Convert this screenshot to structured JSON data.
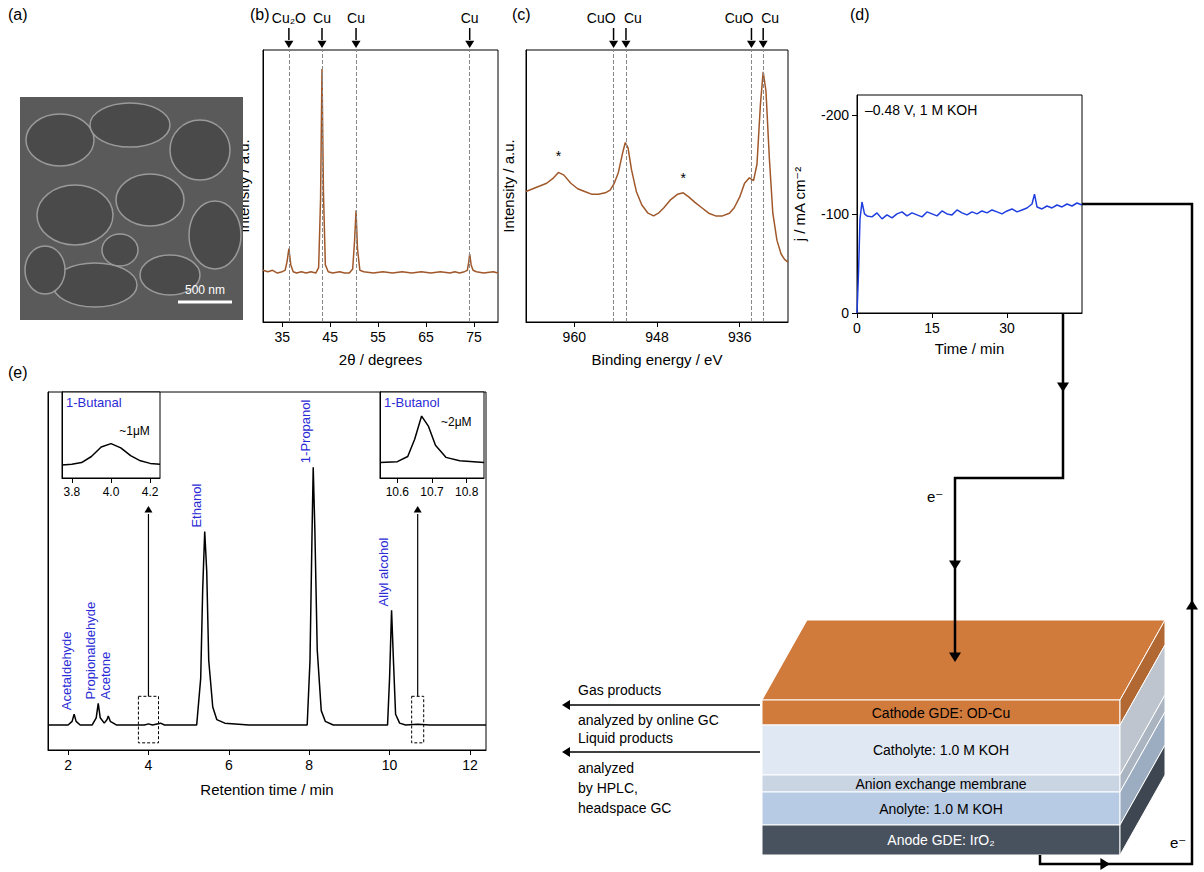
{
  "image": {
    "label": "(a)",
    "scale_bar": "500 nm"
  },
  "chart_data": [
    {
      "label": "(b)",
      "type": "line",
      "x_label": "2θ / degrees",
      "y_label": "Intensity / a.u.",
      "color": "#a0582a",
      "xlim": [
        31,
        80
      ],
      "xticks": [
        35,
        45,
        55,
        65,
        75
      ],
      "ylim": [
        0,
        100
      ],
      "tick_labels": "x",
      "x": [
        31,
        32,
        33,
        34,
        35,
        35.6,
        36,
        36.4,
        36.8,
        37.3,
        38,
        39,
        40,
        41,
        42,
        42.6,
        43,
        43.3,
        43.6,
        44,
        44.6,
        45.5,
        47,
        48,
        49,
        49.7,
        50.1,
        50.4,
        50.7,
        51.2,
        52,
        54,
        56,
        58,
        60,
        62,
        64,
        66,
        68,
        70,
        71,
        72,
        73,
        73.6,
        73.9,
        74.1,
        74.4,
        74.8,
        75.5,
        77,
        79,
        80
      ],
      "values": [
        19,
        18.5,
        19,
        18,
        18.5,
        19,
        22,
        27,
        21,
        18.5,
        18,
        18.5,
        18,
        18.5,
        18,
        20,
        45,
        93,
        48,
        21,
        18.5,
        18,
        18.5,
        18,
        18,
        19.5,
        30,
        41,
        27,
        19,
        18.5,
        18,
        18.5,
        18,
        18.5,
        18,
        18.5,
        18,
        18.5,
        18,
        18.5,
        18,
        18.5,
        19,
        22,
        25,
        21,
        19,
        18.5,
        18,
        18.5,
        18
      ],
      "annotations": [
        {
          "x": 36.4,
          "text": "Cu₂O"
        },
        {
          "x": 43.3,
          "text": "Cu"
        },
        {
          "x": 50.4,
          "text": "Cu"
        },
        {
          "x": 74.1,
          "text": "Cu"
        }
      ]
    },
    {
      "label": "(c)",
      "type": "line",
      "x_label": "Binding energy / eV",
      "y_label": "Intensity / a.u.",
      "color": "#a0582a",
      "xlim": [
        967,
        929
      ],
      "xticks": [
        960,
        948,
        936
      ],
      "ylim": [
        0,
        100
      ],
      "tick_labels": "x",
      "x": [
        967,
        966,
        965,
        964,
        963,
        962.3,
        961.5,
        960.5,
        959.5,
        958.5,
        957.5,
        956.5,
        955.5,
        954.8,
        954.2,
        953.6,
        953,
        952.6,
        952.2,
        951.7,
        951,
        950.2,
        949.3,
        948.5,
        947.8,
        947,
        946,
        945,
        944.2,
        943.4,
        942.5,
        941.5,
        940.5,
        939.5,
        938.5,
        937.5,
        936.8,
        936,
        935.3,
        934.6,
        934,
        933.5,
        933,
        932.6,
        932.2,
        931.7,
        931.2,
        930.6,
        930,
        929.5,
        929
      ],
      "values": [
        48,
        49,
        50,
        51,
        53,
        55,
        54,
        51,
        49,
        48,
        47,
        47,
        47.5,
        48.5,
        51,
        55,
        62,
        66,
        64,
        56,
        48,
        43,
        40,
        39,
        40,
        42,
        45,
        47,
        47.5,
        46,
        44,
        42,
        40,
        39,
        39,
        40,
        42,
        46,
        51,
        53,
        52,
        58,
        80,
        92,
        85,
        60,
        40,
        30,
        25,
        23,
        22
      ],
      "annotations": [
        {
          "x": 954.3,
          "text": "CuO"
        },
        {
          "x": 952.5,
          "text": "Cu"
        },
        {
          "x": 934.3,
          "text": "CuO"
        },
        {
          "x": 932.6,
          "text": "Cu"
        },
        {
          "x": 962.3,
          "y": 61,
          "text": "*"
        },
        {
          "x": 944.2,
          "y": 53,
          "text": "*"
        }
      ]
    },
    {
      "label": "(d)",
      "type": "line",
      "x_label": "Time / min",
      "y_label": "j / mA cm⁻²",
      "color": "#1f3fe0",
      "xlim": [
        0,
        45
      ],
      "xticks": [
        0,
        15,
        30
      ],
      "ylim": [
        0,
        -220
      ],
      "yticks": [
        -200,
        -100,
        0
      ],
      "annotations": [
        {
          "text": "–0.48 V, 1 M KOH"
        }
      ],
      "x": [
        0,
        0.3,
        0.6,
        1,
        1.5,
        2,
        3,
        4,
        5,
        6,
        7,
        8,
        9,
        10,
        11,
        12,
        13,
        14,
        15,
        16,
        17,
        18,
        19,
        20,
        21,
        22,
        23,
        24,
        25,
        26,
        27,
        28,
        29,
        30,
        31,
        32,
        33,
        34,
        35,
        35.5,
        36,
        37,
        38,
        39,
        40,
        41,
        42,
        43,
        44,
        45
      ],
      "values": [
        0,
        -40,
        -95,
        -112,
        -100,
        -98,
        -97,
        -101,
        -95,
        -99,
        -96,
        -100,
        -102,
        -98,
        -101,
        -99,
        -97,
        -102,
        -100,
        -98,
        -103,
        -100,
        -99,
        -104,
        -101,
        -99,
        -102,
        -100,
        -103,
        -101,
        -104,
        -102,
        -100,
        -103,
        -105,
        -102,
        -104,
        -106,
        -110,
        -120,
        -107,
        -105,
        -108,
        -106,
        -109,
        -107,
        -110,
        -108,
        -111,
        -109
      ]
    },
    {
      "label": "(e)",
      "type": "line",
      "x_label": "Retention time / min",
      "color": "#000000",
      "xlim": [
        1.5,
        12.4
      ],
      "xticks": [
        2,
        4,
        6,
        8,
        10,
        12
      ],
      "ylim": [
        0,
        100
      ],
      "tick_labels": "x",
      "x": [
        1.5,
        2,
        2.1,
        2.15,
        2.2,
        2.3,
        2.6,
        2.7,
        2.75,
        2.8,
        2.9,
        2.97,
        3,
        3.05,
        3.2,
        3.9,
        4,
        4.1,
        4.3,
        4.4,
        5.2,
        5.3,
        5.35,
        5.4,
        5.45,
        5.5,
        5.6,
        5.7,
        5.9,
        6.5,
        7.95,
        8.02,
        8.07,
        8.1,
        8.14,
        8.2,
        8.3,
        8.4,
        8.6,
        9.95,
        10,
        10.05,
        10.1,
        10.15,
        10.25,
        10.4,
        10.7,
        11,
        12,
        12.4
      ],
      "values": [
        7,
        7,
        8,
        10,
        8,
        7,
        7,
        9,
        13,
        9,
        7.5,
        8.5,
        9.5,
        8,
        7,
        7,
        7.3,
        7,
        7.5,
        7,
        7,
        20,
        45,
        61,
        50,
        25,
        12,
        8.5,
        7.5,
        7,
        7,
        25,
        60,
        79,
        62,
        28,
        11,
        8,
        7,
        7,
        20,
        39,
        24,
        10,
        7.5,
        7,
        7.2,
        7,
        7,
        7
      ],
      "annotations": [
        {
          "x": 2.15,
          "text": "Acetaldehyde"
        },
        {
          "x": 2.75,
          "text": "Propionaldehyde"
        },
        {
          "x": 3.0,
          "text": "Acetone"
        },
        {
          "x": 5.4,
          "text": "Ethanol"
        },
        {
          "x": 8.1,
          "text": "1-Propanol"
        },
        {
          "x": 10.05,
          "text": "Allyl alcohol"
        }
      ]
    },
    {
      "type": "line",
      "title": "1-Butanal",
      "color": "#000000",
      "xlim": [
        3.75,
        4.25
      ],
      "xticks": [
        3.8,
        {
          "value": 4.0,
          "label": "4.0"
        },
        4.2
      ],
      "ylim": [
        0,
        100
      ],
      "tick_labels": "x",
      "x": [
        3.75,
        3.8,
        3.85,
        3.9,
        3.95,
        4,
        4.05,
        4.1,
        4.15,
        4.2,
        4.25
      ],
      "values": [
        15,
        16,
        18,
        25,
        36,
        40,
        35,
        26,
        20,
        17,
        16
      ],
      "annotations": [
        {
          "x": 4.12,
          "y": 55,
          "text": "~1μM"
        }
      ]
    },
    {
      "type": "line",
      "title": "1-Butanol",
      "color": "#000000",
      "xlim": [
        10.55,
        10.85
      ],
      "xticks": [
        10.6,
        10.7,
        10.8
      ],
      "ylim": [
        0,
        100
      ],
      "tick_labels": "x",
      "x": [
        10.55,
        10.6,
        10.63,
        10.65,
        10.67,
        10.69,
        10.71,
        10.74,
        10.78,
        10.82,
        10.85
      ],
      "values": [
        18,
        19,
        25,
        45,
        72,
        60,
        38,
        24,
        20,
        19,
        18
      ],
      "annotations": [
        {
          "x": 10.77,
          "y": 65,
          "text": "~2μM"
        }
      ]
    }
  ],
  "cell": {
    "layers": [
      {
        "label": "Cathode GDE: OD-Cu",
        "color": "#d07a3c"
      },
      {
        "label": "Catholyte: 1.0 M KOH",
        "color": "#dfe8f3"
      },
      {
        "label": "Anion exchange membrane",
        "color": "#c9d5e3"
      },
      {
        "label": "Anolyte: 1.0 M KOH",
        "color": "#b8cbe4"
      },
      {
        "label": "Anode GDE: IrO₂",
        "color": "#48525f"
      }
    ],
    "outputs": [
      {
        "lines": [
          "Gas products",
          "analyzed by online GC"
        ]
      },
      {
        "lines": [
          "Liquid products",
          "analyzed",
          "by HPLC,",
          "headspace GC"
        ]
      }
    ],
    "electron": "e⁻"
  }
}
